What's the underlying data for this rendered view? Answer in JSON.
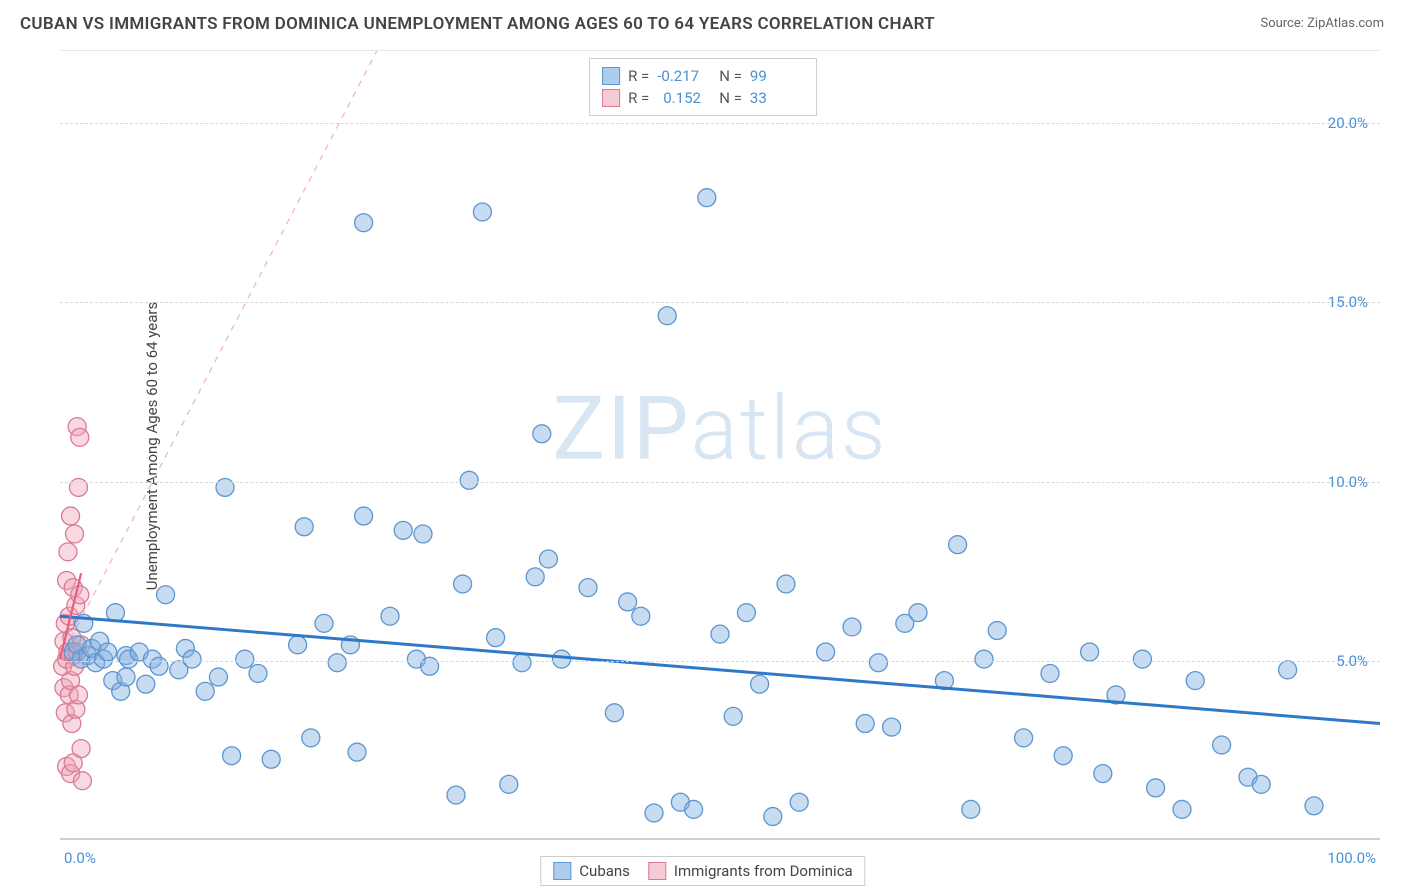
{
  "title": "CUBAN VS IMMIGRANTS FROM DOMINICA UNEMPLOYMENT AMONG AGES 60 TO 64 YEARS CORRELATION CHART",
  "source_label": "Source: ZipAtlas.com",
  "y_axis_label": "Unemployment Among Ages 60 to 64 years",
  "watermark_a": "ZIP",
  "watermark_b": "atlas",
  "chart": {
    "type": "scatter",
    "xlim": [
      0,
      100
    ],
    "ylim": [
      0,
      22
    ],
    "x_ticks": [
      {
        "value": 0,
        "label": "0.0%"
      },
      {
        "value": 100,
        "label": "100.0%"
      }
    ],
    "y_ticks": [
      {
        "value": 5,
        "label": "5.0%"
      },
      {
        "value": 10,
        "label": "10.0%"
      },
      {
        "value": 15,
        "label": "15.0%"
      },
      {
        "value": 20,
        "label": "20.0%"
      }
    ],
    "background_color": "#ffffff",
    "grid_color": "#d8d8d8",
    "axis_label_color": "#4a8fd8",
    "marker_radius": 9,
    "series": [
      {
        "name": "Cubans",
        "color_fill": "rgba(130,175,225,0.45)",
        "color_stroke": "#5d96d0",
        "R": "-0.217",
        "N": "99",
        "trend": {
          "x1": 0,
          "y1": 6.2,
          "x2": 100,
          "y2": 3.2,
          "stroke": "#2f78c7",
          "width": 3,
          "dash": null
        },
        "points": [
          [
            1,
            5.2
          ],
          [
            1.3,
            5.4
          ],
          [
            1.6,
            5.0
          ],
          [
            1.8,
            6.0
          ],
          [
            2.1,
            5.1
          ],
          [
            2.4,
            5.3
          ],
          [
            2.7,
            4.9
          ],
          [
            3.0,
            5.5
          ],
          [
            3.3,
            5.0
          ],
          [
            3.6,
            5.2
          ],
          [
            4,
            4.4
          ],
          [
            4.2,
            6.3
          ],
          [
            4.6,
            4.1
          ],
          [
            5,
            5.1
          ],
          [
            5,
            4.5
          ],
          [
            5.2,
            5.0
          ],
          [
            6,
            5.2
          ],
          [
            6.5,
            4.3
          ],
          [
            7,
            5.0
          ],
          [
            7.5,
            4.8
          ],
          [
            8,
            6.8
          ],
          [
            9,
            4.7
          ],
          [
            9.5,
            5.3
          ],
          [
            10,
            5.0
          ],
          [
            11,
            4.1
          ],
          [
            12,
            4.5
          ],
          [
            12.5,
            9.8
          ],
          [
            13,
            2.3
          ],
          [
            14,
            5.0
          ],
          [
            15,
            4.6
          ],
          [
            16,
            2.2
          ],
          [
            18,
            5.4
          ],
          [
            18.5,
            8.7
          ],
          [
            19,
            2.8
          ],
          [
            20,
            6.0
          ],
          [
            21,
            4.9
          ],
          [
            22,
            5.4
          ],
          [
            22.5,
            2.4
          ],
          [
            23,
            9.0
          ],
          [
            23,
            17.2
          ],
          [
            25,
            6.2
          ],
          [
            26,
            8.6
          ],
          [
            27,
            5.0
          ],
          [
            27.5,
            8.5
          ],
          [
            28,
            4.8
          ],
          [
            30,
            1.2
          ],
          [
            30.5,
            7.1
          ],
          [
            31,
            10.0
          ],
          [
            32,
            17.5
          ],
          [
            33,
            5.6
          ],
          [
            34,
            1.5
          ],
          [
            35,
            4.9
          ],
          [
            36,
            7.3
          ],
          [
            36.5,
            11.3
          ],
          [
            37,
            7.8
          ],
          [
            38,
            5.0
          ],
          [
            40,
            7.0
          ],
          [
            42,
            3.5
          ],
          [
            43,
            6.6
          ],
          [
            44,
            6.2
          ],
          [
            45,
            0.7
          ],
          [
            46,
            14.6
          ],
          [
            47,
            1.0
          ],
          [
            48,
            0.8
          ],
          [
            49,
            17.9
          ],
          [
            50,
            5.7
          ],
          [
            51,
            3.4
          ],
          [
            52,
            6.3
          ],
          [
            53,
            4.3
          ],
          [
            54,
            0.6
          ],
          [
            55,
            7.1
          ],
          [
            56,
            1.0
          ],
          [
            58,
            5.2
          ],
          [
            60,
            5.9
          ],
          [
            61,
            3.2
          ],
          [
            62,
            4.9
          ],
          [
            63,
            3.1
          ],
          [
            64,
            6.0
          ],
          [
            65,
            6.3
          ],
          [
            67,
            4.4
          ],
          [
            68,
            8.2
          ],
          [
            69,
            0.8
          ],
          [
            70,
            5.0
          ],
          [
            71,
            5.8
          ],
          [
            73,
            2.8
          ],
          [
            75,
            4.6
          ],
          [
            76,
            2.3
          ],
          [
            78,
            5.2
          ],
          [
            79,
            1.8
          ],
          [
            80,
            4.0
          ],
          [
            82,
            5.0
          ],
          [
            83,
            1.4
          ],
          [
            85,
            0.8
          ],
          [
            86,
            4.4
          ],
          [
            88,
            2.6
          ],
          [
            90,
            1.7
          ],
          [
            91,
            1.5
          ],
          [
            93,
            4.7
          ],
          [
            95,
            0.9
          ]
        ]
      },
      {
        "name": "Immigrants from Dominica",
        "color_fill": "rgba(240,160,180,0.40)",
        "color_stroke": "#d97a95",
        "R": "0.152",
        "N": "33",
        "trend": {
          "x1": 0,
          "y1": 5.0,
          "x2": 1.6,
          "y2": 7.4,
          "stroke": "#e2607f",
          "width": 2.2,
          "dash": null
        },
        "trend_ext": {
          "x1": 0,
          "y1": 5.0,
          "x2": 24,
          "y2": 22,
          "stroke": "#f3b6c4",
          "width": 1.3,
          "dash": "6,6"
        },
        "points": [
          [
            0.2,
            4.8
          ],
          [
            0.3,
            5.5
          ],
          [
            0.3,
            4.2
          ],
          [
            0.4,
            6.0
          ],
          [
            0.4,
            3.5
          ],
          [
            0.5,
            5.0
          ],
          [
            0.5,
            7.2
          ],
          [
            0.5,
            2.0
          ],
          [
            0.6,
            5.2
          ],
          [
            0.6,
            8.0
          ],
          [
            0.7,
            4.0
          ],
          [
            0.7,
            6.2
          ],
          [
            0.8,
            4.4
          ],
          [
            0.8,
            9.0
          ],
          [
            0.8,
            1.8
          ],
          [
            0.9,
            5.6
          ],
          [
            0.9,
            3.2
          ],
          [
            1.0,
            5.1
          ],
          [
            1.0,
            7.0
          ],
          [
            1.0,
            2.1
          ],
          [
            1.1,
            8.5
          ],
          [
            1.1,
            4.8
          ],
          [
            1.2,
            6.5
          ],
          [
            1.2,
            3.6
          ],
          [
            1.3,
            11.5
          ],
          [
            1.3,
            5.2
          ],
          [
            1.4,
            4.0
          ],
          [
            1.4,
            9.8
          ],
          [
            1.5,
            11.2
          ],
          [
            1.5,
            6.8
          ],
          [
            1.6,
            5.4
          ],
          [
            1.6,
            2.5
          ],
          [
            1.7,
            1.6
          ]
        ]
      }
    ]
  },
  "legend_top": {
    "r_label": "R =",
    "n_label": "N ="
  },
  "legend_bottom": [
    {
      "swatch": "blue",
      "label": "Cubans"
    },
    {
      "swatch": "pink",
      "label": "Immigrants from Dominica"
    }
  ]
}
